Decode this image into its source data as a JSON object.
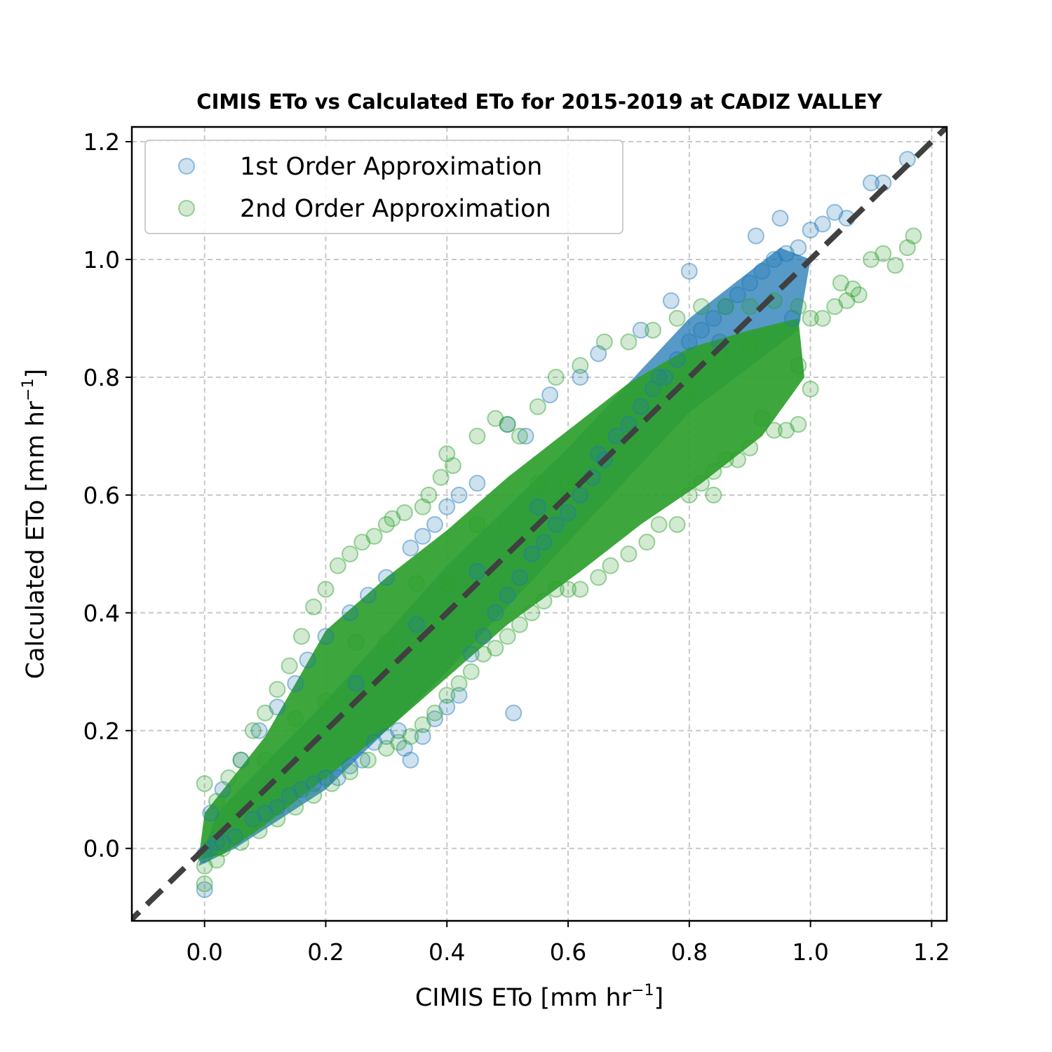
{
  "chart_data": {
    "type": "scatter",
    "title": "CIMIS ETo vs Calculated ETo for 2015-2019 at CADIZ VALLEY",
    "xlabel": {
      "main": "CIMIS ETo [mm hr",
      "sup": "−1",
      "end": "]"
    },
    "ylabel": {
      "main": "Calculated ETo [mm hr",
      "sup": "−1",
      "end": "]"
    },
    "xlim": [
      -0.12,
      1.225
    ],
    "ylim": [
      -0.123,
      1.225
    ],
    "xticks": [
      0.0,
      0.2,
      0.4,
      0.6,
      0.8,
      1.0,
      1.2
    ],
    "xtick_labels": [
      "0.0",
      "0.2",
      "0.4",
      "0.6",
      "0.8",
      "1.0",
      "1.2"
    ],
    "yticks": [
      0.0,
      0.2,
      0.4,
      0.6,
      0.8,
      1.0,
      1.2
    ],
    "ytick_labels": [
      "0.0",
      "0.2",
      "0.4",
      "0.6",
      "0.8",
      "1.0",
      "1.2"
    ],
    "grid": true,
    "legend_position": "top-left",
    "reference_line": {
      "type": "1:1",
      "style": "dashed",
      "color": "#404040"
    },
    "series": [
      {
        "name": "1st Order Approximation",
        "color": "#1f77b4",
        "points": [
          [
            0.0,
            -0.01
          ],
          [
            0.0,
            -0.07
          ],
          [
            0.01,
            0.0
          ],
          [
            0.02,
            0.01
          ],
          [
            0.03,
            0.01
          ],
          [
            0.05,
            0.02
          ],
          [
            0.08,
            0.05
          ],
          [
            0.1,
            0.06
          ],
          [
            0.12,
            0.07
          ],
          [
            0.14,
            0.09
          ],
          [
            0.16,
            0.1
          ],
          [
            0.18,
            0.11
          ],
          [
            0.2,
            0.12
          ],
          [
            0.22,
            0.12
          ],
          [
            0.24,
            0.14
          ],
          [
            0.26,
            0.15
          ],
          [
            0.28,
            0.18
          ],
          [
            0.3,
            0.19
          ],
          [
            0.32,
            0.2
          ],
          [
            0.33,
            0.17
          ],
          [
            0.34,
            0.15
          ],
          [
            0.36,
            0.19
          ],
          [
            0.38,
            0.22
          ],
          [
            0.4,
            0.24
          ],
          [
            0.42,
            0.26
          ],
          [
            0.51,
            0.23
          ],
          [
            0.44,
            0.33
          ],
          [
            0.46,
            0.36
          ],
          [
            0.48,
            0.4
          ],
          [
            0.5,
            0.43
          ],
          [
            0.52,
            0.46
          ],
          [
            0.54,
            0.5
          ],
          [
            0.56,
            0.52
          ],
          [
            0.58,
            0.55
          ],
          [
            0.6,
            0.57
          ],
          [
            0.62,
            0.6
          ],
          [
            0.64,
            0.63
          ],
          [
            0.66,
            0.66
          ],
          [
            0.68,
            0.7
          ],
          [
            0.7,
            0.72
          ],
          [
            0.72,
            0.75
          ],
          [
            0.74,
            0.78
          ],
          [
            0.76,
            0.8
          ],
          [
            0.78,
            0.83
          ],
          [
            0.8,
            0.86
          ],
          [
            0.82,
            0.88
          ],
          [
            0.84,
            0.9
          ],
          [
            0.86,
            0.92
          ],
          [
            0.88,
            0.94
          ],
          [
            0.9,
            0.96
          ],
          [
            0.92,
            0.98
          ],
          [
            0.94,
            1.0
          ],
          [
            0.96,
            1.01
          ],
          [
            0.98,
            1.02
          ],
          [
            1.0,
            1.05
          ],
          [
            1.02,
            1.06
          ],
          [
            1.04,
            1.08
          ],
          [
            1.06,
            1.07
          ],
          [
            1.1,
            1.13
          ],
          [
            1.12,
            1.13
          ],
          [
            1.16,
            1.17
          ],
          [
            0.91,
            1.04
          ],
          [
            0.95,
            1.07
          ],
          [
            0.57,
            0.77
          ],
          [
            0.65,
            0.84
          ],
          [
            0.72,
            0.88
          ],
          [
            0.77,
            0.93
          ],
          [
            0.8,
            0.98
          ],
          [
            0.5,
            0.72
          ],
          [
            0.62,
            0.8
          ],
          [
            0.53,
            0.7
          ],
          [
            0.45,
            0.62
          ],
          [
            0.42,
            0.6
          ],
          [
            0.4,
            0.58
          ],
          [
            0.38,
            0.55
          ],
          [
            0.36,
            0.53
          ],
          [
            0.34,
            0.51
          ],
          [
            0.3,
            0.46
          ],
          [
            0.27,
            0.43
          ],
          [
            0.24,
            0.4
          ],
          [
            0.2,
            0.36
          ],
          [
            0.17,
            0.32
          ],
          [
            0.15,
            0.28
          ],
          [
            0.12,
            0.24
          ],
          [
            0.09,
            0.2
          ],
          [
            0.06,
            0.15
          ],
          [
            0.03,
            0.1
          ],
          [
            0.01,
            0.06
          ],
          [
            0.35,
            0.38
          ],
          [
            0.55,
            0.58
          ],
          [
            0.75,
            0.8
          ],
          [
            0.85,
            0.86
          ],
          [
            0.25,
            0.28
          ],
          [
            0.45,
            0.47
          ],
          [
            0.65,
            0.67
          ],
          [
            0.97,
            0.9
          ]
        ]
      },
      {
        "name": "2nd Order Approximation",
        "color": "#2ca02c",
        "points": [
          [
            0.0,
            -0.06
          ],
          [
            0.0,
            -0.03
          ],
          [
            0.0,
            0.11
          ],
          [
            0.02,
            0.08
          ],
          [
            0.04,
            0.12
          ],
          [
            0.06,
            0.15
          ],
          [
            0.08,
            0.2
          ],
          [
            0.1,
            0.23
          ],
          [
            0.12,
            0.27
          ],
          [
            0.14,
            0.31
          ],
          [
            0.16,
            0.36
          ],
          [
            0.18,
            0.41
          ],
          [
            0.2,
            0.44
          ],
          [
            0.22,
            0.48
          ],
          [
            0.24,
            0.5
          ],
          [
            0.26,
            0.52
          ],
          [
            0.28,
            0.53
          ],
          [
            0.3,
            0.55
          ],
          [
            0.31,
            0.56
          ],
          [
            0.33,
            0.57
          ],
          [
            0.36,
            0.58
          ],
          [
            0.37,
            0.6
          ],
          [
            0.39,
            0.63
          ],
          [
            0.4,
            0.67
          ],
          [
            0.41,
            0.65
          ],
          [
            0.45,
            0.7
          ],
          [
            0.48,
            0.73
          ],
          [
            0.5,
            0.72
          ],
          [
            0.52,
            0.7
          ],
          [
            0.55,
            0.75
          ],
          [
            0.58,
            0.8
          ],
          [
            0.62,
            0.82
          ],
          [
            0.66,
            0.86
          ],
          [
            0.7,
            0.86
          ],
          [
            0.74,
            0.88
          ],
          [
            0.78,
            0.9
          ],
          [
            0.82,
            0.92
          ],
          [
            0.86,
            0.92
          ],
          [
            0.9,
            0.92
          ],
          [
            0.94,
            0.93
          ],
          [
            0.98,
            0.92
          ],
          [
            1.0,
            0.9
          ],
          [
            1.02,
            0.9
          ],
          [
            1.04,
            0.92
          ],
          [
            1.06,
            0.93
          ],
          [
            1.1,
            1.0
          ],
          [
            1.12,
            1.01
          ],
          [
            1.14,
            0.99
          ],
          [
            1.16,
            1.02
          ],
          [
            1.17,
            1.04
          ],
          [
            1.05,
            0.96
          ],
          [
            1.07,
            0.95
          ],
          [
            1.08,
            0.94
          ],
          [
            0.98,
            0.82
          ],
          [
            1.0,
            0.78
          ],
          [
            0.98,
            0.72
          ],
          [
            0.96,
            0.71
          ],
          [
            0.94,
            0.71
          ],
          [
            0.92,
            0.73
          ],
          [
            0.9,
            0.68
          ],
          [
            0.88,
            0.66
          ],
          [
            0.86,
            0.66
          ],
          [
            0.84,
            0.64
          ],
          [
            0.82,
            0.62
          ],
          [
            0.84,
            0.6
          ],
          [
            0.8,
            0.6
          ],
          [
            0.78,
            0.55
          ],
          [
            0.75,
            0.55
          ],
          [
            0.73,
            0.52
          ],
          [
            0.7,
            0.5
          ],
          [
            0.67,
            0.48
          ],
          [
            0.65,
            0.46
          ],
          [
            0.62,
            0.44
          ],
          [
            0.6,
            0.44
          ],
          [
            0.58,
            0.44
          ],
          [
            0.56,
            0.42
          ],
          [
            0.54,
            0.4
          ],
          [
            0.52,
            0.38
          ],
          [
            0.5,
            0.36
          ],
          [
            0.48,
            0.34
          ],
          [
            0.46,
            0.33
          ],
          [
            0.44,
            0.3
          ],
          [
            0.42,
            0.28
          ],
          [
            0.4,
            0.26
          ],
          [
            0.38,
            0.23
          ],
          [
            0.36,
            0.21
          ],
          [
            0.34,
            0.19
          ],
          [
            0.32,
            0.18
          ],
          [
            0.3,
            0.17
          ],
          [
            0.27,
            0.15
          ],
          [
            0.24,
            0.13
          ],
          [
            0.21,
            0.11
          ],
          [
            0.18,
            0.09
          ],
          [
            0.15,
            0.07
          ],
          [
            0.12,
            0.05
          ],
          [
            0.09,
            0.03
          ],
          [
            0.06,
            0.01
          ],
          [
            0.03,
            0.0
          ],
          [
            0.02,
            -0.02
          ],
          [
            0.1,
            0.15
          ],
          [
            0.2,
            0.25
          ],
          [
            0.3,
            0.35
          ],
          [
            0.4,
            0.45
          ],
          [
            0.5,
            0.55
          ],
          [
            0.6,
            0.62
          ],
          [
            0.7,
            0.7
          ],
          [
            0.8,
            0.78
          ],
          [
            0.9,
            0.85
          ],
          [
            0.25,
            0.35
          ],
          [
            0.35,
            0.45
          ],
          [
            0.45,
            0.55
          ],
          [
            0.55,
            0.62
          ],
          [
            0.65,
            0.7
          ],
          [
            0.75,
            0.78
          ],
          [
            0.85,
            0.84
          ],
          [
            0.15,
            0.22
          ],
          [
            0.05,
            0.07
          ]
        ]
      }
    ]
  }
}
